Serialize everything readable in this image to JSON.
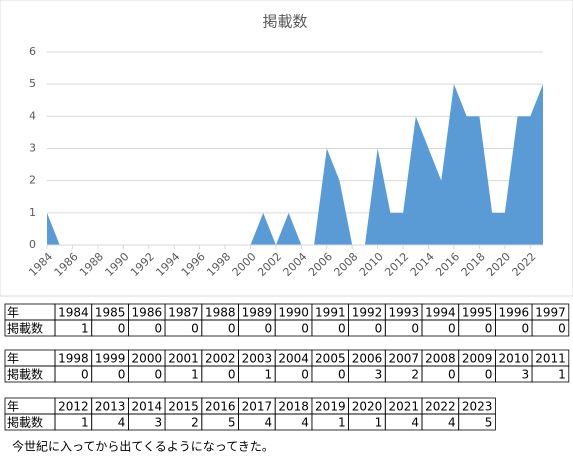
{
  "chart_data": {
    "type": "area",
    "title": "掲載数",
    "x": [
      1984,
      1985,
      1986,
      1987,
      1988,
      1989,
      1990,
      1991,
      1992,
      1993,
      1994,
      1995,
      1996,
      1997,
      1998,
      1999,
      2000,
      2001,
      2002,
      2003,
      2004,
      2005,
      2006,
      2007,
      2008,
      2009,
      2010,
      2011,
      2012,
      2013,
      2014,
      2015,
      2016,
      2017,
      2018,
      2019,
      2020,
      2021,
      2022,
      2023
    ],
    "values": [
      1,
      0,
      0,
      0,
      0,
      0,
      0,
      0,
      0,
      0,
      0,
      0,
      0,
      0,
      0,
      0,
      0,
      1,
      0,
      1,
      0,
      0,
      3,
      2,
      0,
      0,
      3,
      1,
      1,
      4,
      3,
      2,
      5,
      4,
      4,
      1,
      1,
      4,
      4,
      5
    ],
    "color": "#5b9bd5",
    "xlim": [
      1984,
      2023
    ],
    "xticks": [
      1984,
      1986,
      1988,
      1990,
      1992,
      1994,
      1996,
      1998,
      2000,
      2002,
      2004,
      2006,
      2008,
      2010,
      2012,
      2014,
      2016,
      2018,
      2020,
      2022
    ],
    "ylim": [
      0,
      6
    ],
    "yticks": [
      0,
      1,
      2,
      3,
      4,
      5,
      6
    ],
    "grid": true
  },
  "table": {
    "row_labels": [
      "年",
      "掲載数"
    ]
  },
  "note": "今世紀に入ってから出てくるようになってきた。"
}
